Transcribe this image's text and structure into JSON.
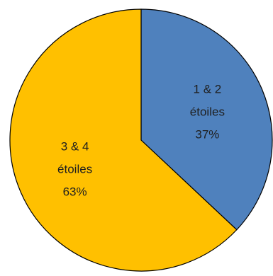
{
  "chart_data": {
    "type": "pie",
    "title": "",
    "slices": [
      {
        "lines": [
          "1 & 2",
          "étoiles",
          "37%"
        ],
        "value": 37,
        "color": "#4F81BD"
      },
      {
        "lines": [
          "3 & 4",
          "étoiles",
          "63%"
        ],
        "value": 63,
        "color": "#FFC000"
      }
    ],
    "start_angle_deg": 0,
    "direction": "clockwise",
    "legend": "none"
  }
}
